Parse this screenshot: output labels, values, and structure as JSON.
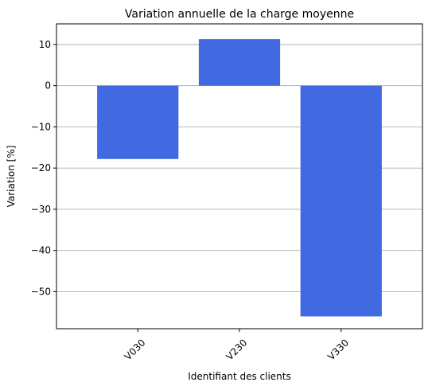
{
  "chart_data": {
    "type": "bar",
    "title": "Variation annuelle de la charge moyenne",
    "xlabel": "Identifiant des clients",
    "ylabel": "Variation [%]",
    "categories": [
      "V030",
      "V230",
      "V330"
    ],
    "values": [
      -17.8,
      11.3,
      -56.0
    ],
    "ylim": [
      -59,
      15
    ],
    "yticks": [
      10,
      0,
      -10,
      -20,
      -30,
      -40,
      -50
    ],
    "ytick_labels": [
      "10",
      "0",
      "−10",
      "−20",
      "−30",
      "−40",
      "−50"
    ],
    "grid": "y",
    "bar_color": "#4169E1",
    "gridline_color": "#b0b0b0"
  }
}
